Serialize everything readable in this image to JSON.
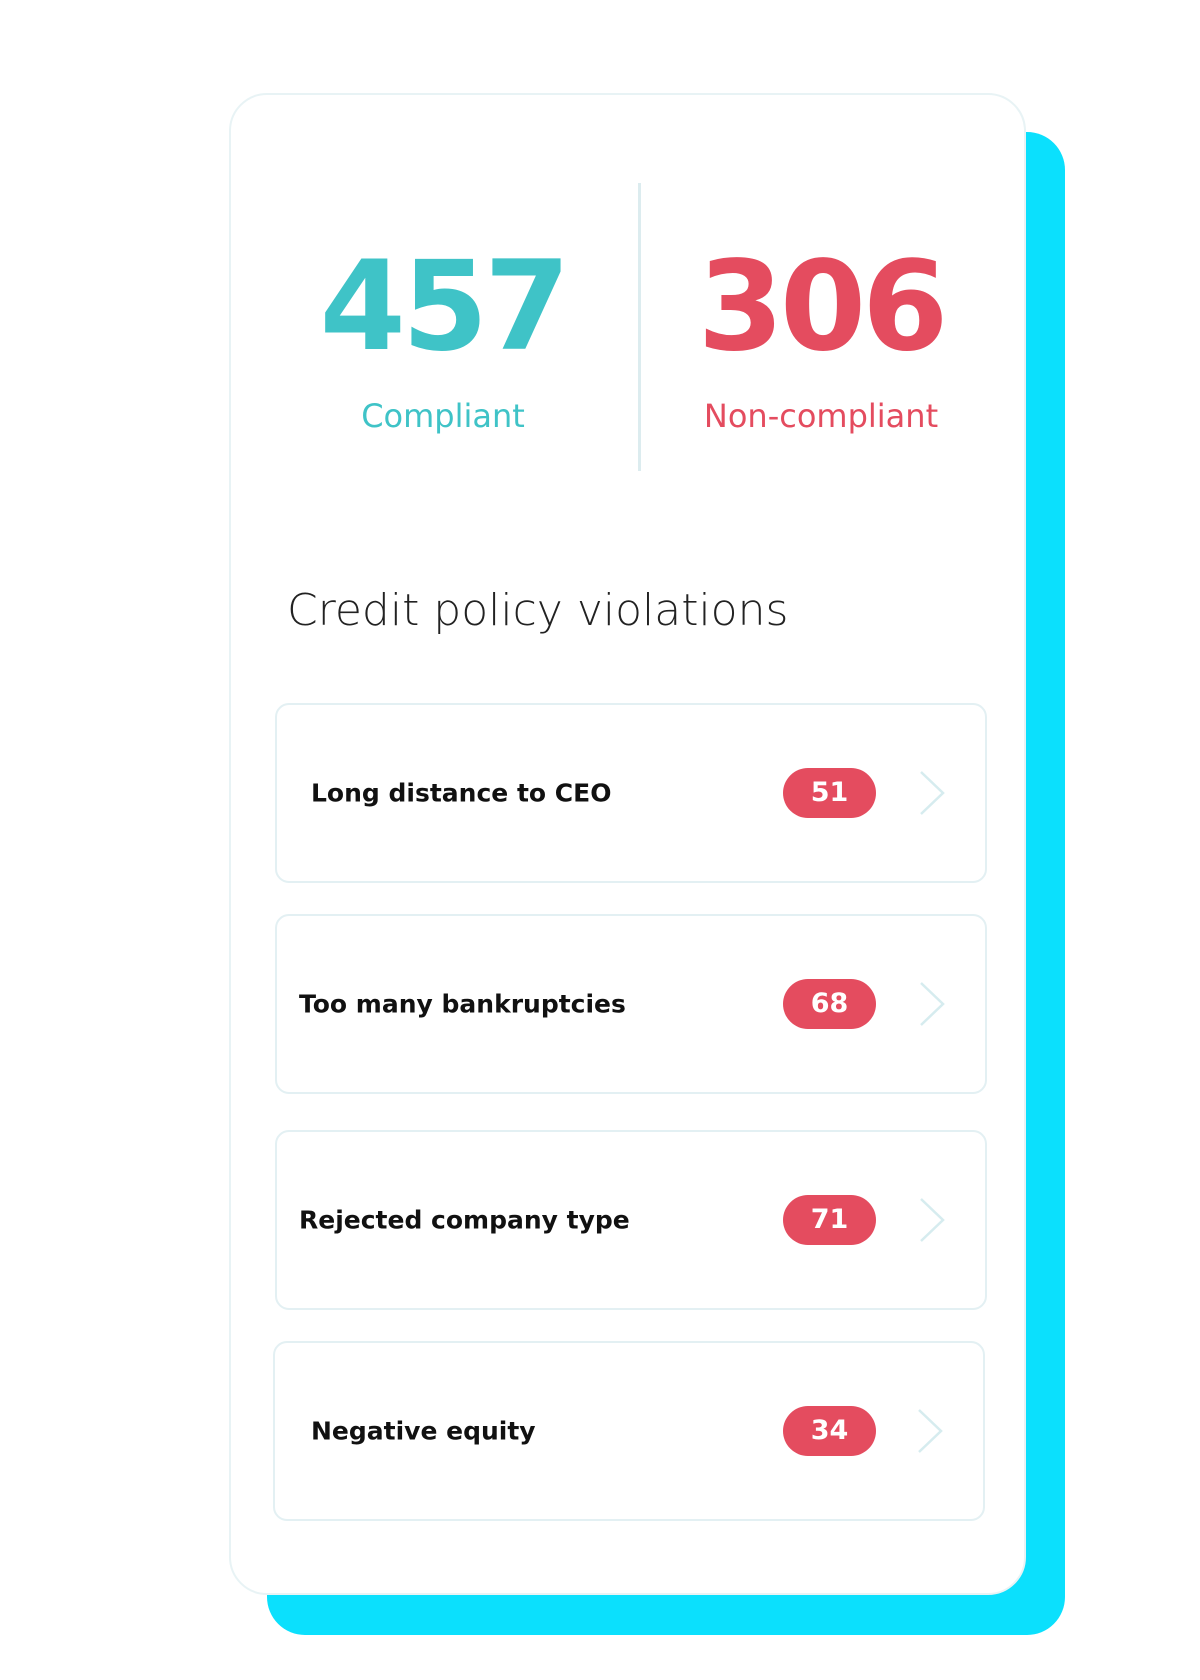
{
  "stats": {
    "compliant": {
      "value": "457",
      "label": "Compliant",
      "color": "#3fc3c7"
    },
    "non_compliant": {
      "value": "306",
      "label": "Non-compliant",
      "color": "#e44c5f"
    }
  },
  "section_title": "Credit policy violations",
  "violations": [
    {
      "label": "Long distance to CEO",
      "count": "51"
    },
    {
      "label": "Too many bankruptcies",
      "count": "68"
    },
    {
      "label": "Rejected company type",
      "count": "71"
    },
    {
      "label": "Negative equity",
      "count": "34"
    }
  ],
  "colors": {
    "accent_shadow": "#0be0fd",
    "badge": "#e44c5f"
  }
}
